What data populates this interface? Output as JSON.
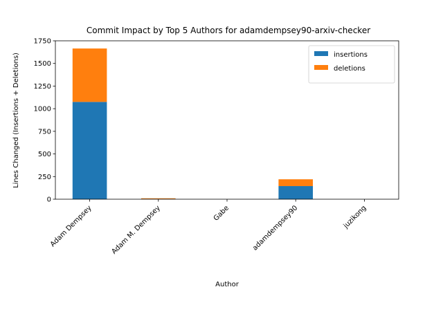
{
  "chart_data": {
    "type": "bar",
    "stacked": true,
    "title": "Commit Impact by Top 5 Authors for adamdempsey90-arxiv-checker",
    "xlabel": "Author",
    "ylabel": "Lines Changed (Insertions + Deletions)",
    "categories": [
      "Adam Dempsey",
      "Adam M. Dempsey",
      "Gabe",
      "adamdempsey90",
      "juzikong"
    ],
    "series": [
      {
        "name": "insertions",
        "color": "#1f77b4",
        "values": [
          1075,
          4,
          0,
          145,
          0
        ]
      },
      {
        "name": "deletions",
        "color": "#ff7f0e",
        "values": [
          590,
          6,
          0,
          75,
          0
        ]
      }
    ],
    "ylim": [
      0,
      1750
    ],
    "yticks": [
      0,
      250,
      500,
      750,
      1000,
      1250,
      1500,
      1750
    ],
    "grid": false,
    "legend_position": "top-right"
  }
}
